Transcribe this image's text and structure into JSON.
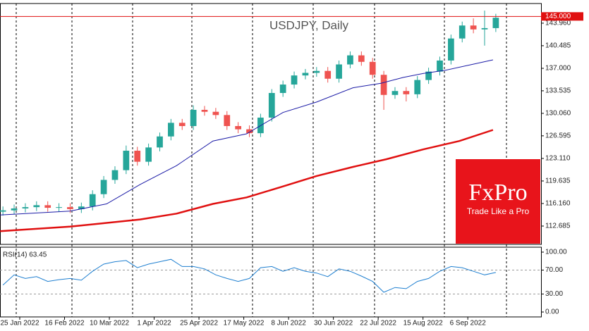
{
  "chart_data": {
    "type": "candlestick",
    "title": "USDJPY, Daily",
    "x": [
      -6,
      -2,
      2,
      6,
      10,
      14,
      18,
      22,
      26,
      30,
      34,
      38,
      42,
      46,
      50,
      54,
      58,
      62,
      66,
      70,
      74,
      78,
      82,
      86,
      90,
      94,
      98,
      102,
      106,
      110,
      114,
      118,
      122,
      126,
      130,
      134,
      138,
      142,
      146,
      150,
      154,
      158,
      162,
      166,
      170
    ],
    "open": [
      114.9,
      115.1,
      115.4,
      115.6,
      115.9,
      115.5,
      115.6,
      115.3,
      115.7,
      117.6,
      119.8,
      121.3,
      124.3,
      122.6,
      124.8,
      126.5,
      128.6,
      128.1,
      130.6,
      130.3,
      129.8,
      128.1,
      127.6,
      127.0,
      129.4,
      133.2,
      134.5,
      135.9,
      136.3,
      136.6,
      135.4,
      137.6,
      139.0,
      138.0,
      136.0,
      132.9,
      133.5,
      133.0,
      135.2,
      136.5,
      138.2,
      141.6,
      143.6,
      143.0,
      143.2
    ],
    "high": [
      115.7,
      116.0,
      116.2,
      116.5,
      116.5,
      116.2,
      116.2,
      116.3,
      118.2,
      120.4,
      121.9,
      125.1,
      124.9,
      125.4,
      127.1,
      129.2,
      129.2,
      131.3,
      131.2,
      130.9,
      130.4,
      128.7,
      128.2,
      130.0,
      133.8,
      135.1,
      136.5,
      136.9,
      137.2,
      137.2,
      138.2,
      139.6,
      139.6,
      138.6,
      136.6,
      134.1,
      134.1,
      135.8,
      137.1,
      138.8,
      142.2,
      144.2,
      144.7,
      145.9,
      145.4
    ],
    "low": [
      114.3,
      114.5,
      114.8,
      115.0,
      114.9,
      114.9,
      114.7,
      114.7,
      115.1,
      117.0,
      119.2,
      120.7,
      122.0,
      122.0,
      124.2,
      125.9,
      127.5,
      127.5,
      129.7,
      129.2,
      127.5,
      127.0,
      126.4,
      126.4,
      128.8,
      132.6,
      133.9,
      135.3,
      135.7,
      134.8,
      134.8,
      137.0,
      137.4,
      135.4,
      130.6,
      132.3,
      131.9,
      132.4,
      134.6,
      135.9,
      137.6,
      141.0,
      142.4,
      140.5,
      142.6
    ],
    "close": [
      115.1,
      115.4,
      115.6,
      115.9,
      115.5,
      115.6,
      115.3,
      115.7,
      117.6,
      119.8,
      121.3,
      124.3,
      122.6,
      124.8,
      126.5,
      128.6,
      128.1,
      130.6,
      130.3,
      129.8,
      128.1,
      127.6,
      127.0,
      129.4,
      133.2,
      134.5,
      135.9,
      136.3,
      136.6,
      135.4,
      137.6,
      139.0,
      138.0,
      136.0,
      132.9,
      133.5,
      133.0,
      135.2,
      136.5,
      138.2,
      141.6,
      143.6,
      143.0,
      143.2,
      144.8
    ],
    "up_color": "#26a69a",
    "down_color": "#ef5350",
    "ma_lines": [
      {
        "color": "#1a1aa6",
        "line_width": 1,
        "x": [
          -7,
          18,
          31,
          43,
          56,
          69,
          81,
          94,
          106,
          119,
          129,
          137,
          144,
          152,
          169
        ],
        "values": [
          114.4,
          115.0,
          116.1,
          119.1,
          122.0,
          125.8,
          126.9,
          130.2,
          131.8,
          134.0,
          134.7,
          135.6,
          136.2,
          136.7,
          138.3
        ]
      },
      {
        "color": "#e01010",
        "line_width": 2.5,
        "x": [
          -7,
          18,
          43,
          56,
          69,
          81,
          94,
          106,
          119,
          131,
          144,
          157,
          169
        ],
        "values": [
          111.9,
          112.6,
          113.7,
          114.6,
          116.1,
          117.1,
          118.8,
          120.4,
          121.8,
          123.0,
          124.5,
          125.8,
          127.5
        ]
      }
    ],
    "price_line": {
      "value": 145.0,
      "label": "145.000",
      "color": "#e01010"
    },
    "xlim": [
      -7.05,
      186.15
    ],
    "xticks": [
      {
        "value": 0,
        "label": "25 Jan 2022"
      },
      {
        "value": 16,
        "label": "16 Feb 2022"
      },
      {
        "value": 32,
        "label": "10 Mar 2022"
      },
      {
        "value": 48,
        "label": "1 Apr 2022"
      },
      {
        "value": 64,
        "label": "25 Apr 2022"
      },
      {
        "value": 80,
        "label": "17 May 2022"
      },
      {
        "value": 96,
        "label": "8 Jun 2022"
      },
      {
        "value": 112,
        "label": "30 Jun 2022"
      },
      {
        "value": 128,
        "label": "22 Jul 2022"
      },
      {
        "value": 144,
        "label": "15 Aug 2022"
      },
      {
        "value": 160,
        "label": "6 Sep 2022"
      }
    ],
    "ylim": [
      109.86,
      146.99
    ],
    "yticks": [
      {
        "value": 112.685,
        "label": "112.685"
      },
      {
        "value": 116.16,
        "label": "116.160"
      },
      {
        "value": 119.635,
        "label": "119.635"
      },
      {
        "value": 123.11,
        "label": "123.110"
      },
      {
        "value": 126.595,
        "label": "126.595"
      },
      {
        "value": 130.06,
        "label": "130.060"
      },
      {
        "value": 133.535,
        "label": "133.535"
      },
      {
        "value": 137.0,
        "label": "137.000"
      },
      {
        "value": 140.485,
        "label": "140.485"
      },
      {
        "value": 143.96,
        "label": "143.960"
      }
    ],
    "rsi": {
      "label": "RSI(14) 63.45",
      "color": "#1e7fd0",
      "values": [
        45,
        62,
        56,
        59,
        51,
        54,
        56,
        53,
        68,
        80,
        84,
        86,
        74,
        80,
        84,
        88,
        76,
        76,
        72,
        62,
        56,
        51,
        56,
        74,
        76,
        68,
        74,
        68,
        65,
        59,
        72,
        68,
        60,
        51,
        33,
        41,
        39,
        51,
        56,
        68,
        76,
        74,
        68,
        62,
        66
      ],
      "ylim": [
        -8.2,
        108.2
      ],
      "yticks": [
        {
          "value": 0,
          "label": "0.00"
        },
        {
          "value": 30,
          "label": "30.00"
        },
        {
          "value": 70,
          "label": "70.00"
        },
        {
          "value": 100,
          "label": "100.00"
        }
      ],
      "levels": [
        30,
        70
      ]
    },
    "logo": {
      "brand": "FxPro",
      "tagline": "Trade Like a Pro",
      "color": "#e8141b"
    }
  }
}
